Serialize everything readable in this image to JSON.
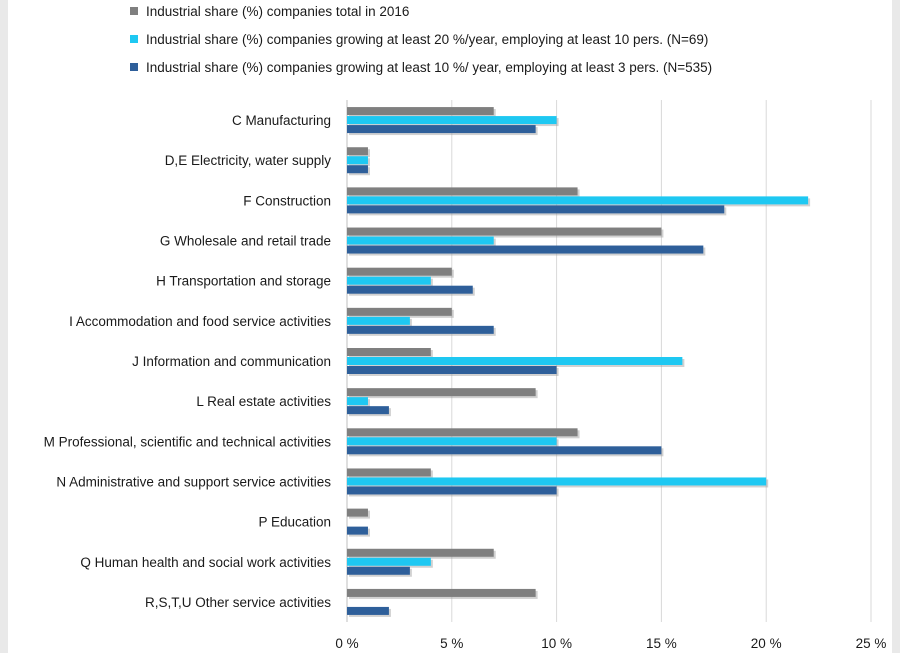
{
  "chart_data": {
    "type": "bar",
    "orientation": "horizontal",
    "categories": [
      "C Manufacturing",
      "D,E Electricity, water supply",
      "F Construction",
      "G  Wholesale and retail trade",
      "H Transportation and storage",
      "I Accommodation and food service activities",
      "J Information and communication",
      "L Real estate activities",
      "M Professional, scientific and technical activities",
      "N Administrative and support service activities",
      "P Education",
      "Q Human health and social work activities",
      "R,S,T,U Other service activities"
    ],
    "series": [
      {
        "name": "Industrial share (%) companies total in 2016",
        "color": "#7f7f7f",
        "values": [
          7,
          1,
          11,
          15,
          5,
          5,
          4,
          9,
          11,
          4,
          1,
          7,
          9
        ]
      },
      {
        "name": "Industrial share (%) companies growing at least 20 %/year, employing at least 10 pers.  (N=69)",
        "color": "#1ec8f2",
        "values": [
          10,
          1,
          22,
          7,
          4,
          3,
          16,
          1,
          10,
          20,
          0,
          4,
          0
        ]
      },
      {
        "name": "Industrial share (%) companies growing at least 10 %/ year, employing at least 3 pers. (N=535)",
        "color": "#2e5f9a",
        "values": [
          9,
          1,
          18,
          17,
          6,
          7,
          10,
          2,
          15,
          10,
          1,
          3,
          2
        ]
      }
    ],
    "x_ticks": [
      "0 %",
      "5 %",
      "10 %",
      "15 %",
      "20 %",
      "25 %"
    ],
    "xlim": [
      0,
      25
    ],
    "grid": true,
    "legend_position": "top"
  }
}
